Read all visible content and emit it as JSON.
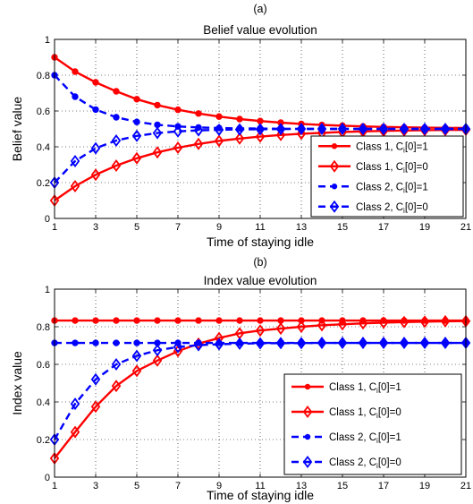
{
  "chart_data": [
    {
      "type": "line",
      "panel": "(a)",
      "title": "Belief value evolution",
      "xlabel": "Time of staying idle",
      "ylabel": "Belief value",
      "xlim": [
        1,
        21
      ],
      "ylim": [
        0,
        1
      ],
      "xticks": [
        "1",
        "3",
        "5",
        "7",
        "9",
        "11",
        "13",
        "15",
        "17",
        "19",
        "21"
      ],
      "yticks": [
        "0",
        "0.2",
        "0.4",
        "0.6",
        "0.8",
        "1"
      ],
      "grid": true,
      "legend_position": "lower-right",
      "x": [
        1,
        2,
        3,
        4,
        5,
        6,
        7,
        8,
        9,
        10,
        11,
        12,
        13,
        14,
        15,
        16,
        17,
        18,
        19,
        20,
        21
      ],
      "series": [
        {
          "name": "Class 1, C_i[0]=1",
          "label_main": "Class 1, C",
          "label_sub": "i",
          "label_tail": "[0]=1",
          "color": "#ff0000",
          "dash": "solid",
          "marker": "dot",
          "values": [
            0.9,
            0.82,
            0.76,
            0.71,
            0.666,
            0.633,
            0.607,
            0.586,
            0.569,
            0.555,
            0.544,
            0.535,
            0.528,
            0.522,
            0.518,
            0.514,
            0.511,
            0.509,
            0.507,
            0.506,
            0.505
          ]
        },
        {
          "name": "Class 1, C_i[0]=0",
          "label_main": "Class 1, C",
          "label_sub": "i",
          "label_tail": "[0]=0",
          "color": "#ff0000",
          "dash": "solid",
          "marker": "diamond",
          "values": [
            0.1,
            0.18,
            0.244,
            0.295,
            0.336,
            0.369,
            0.395,
            0.416,
            0.433,
            0.446,
            0.457,
            0.466,
            0.473,
            0.478,
            0.483,
            0.486,
            0.489,
            0.491,
            0.493,
            0.494,
            0.495
          ]
        },
        {
          "name": "Class 2, C_i[0]=1",
          "label_main": "Class 2, C",
          "label_sub": "i",
          "label_tail": "[0]=1",
          "color": "#0000ff",
          "dash": "dashed",
          "marker": "dot",
          "values": [
            0.8,
            0.68,
            0.608,
            0.565,
            0.539,
            0.523,
            0.514,
            0.508,
            0.505,
            0.503,
            0.502,
            0.501,
            0.5,
            0.5,
            0.5,
            0.5,
            0.5,
            0.5,
            0.5,
            0.5,
            0.5
          ]
        },
        {
          "name": "Class 2, C_i[0]=0",
          "label_main": "Class 2, C",
          "label_sub": "i",
          "label_tail": "[0]=0",
          "color": "#0000ff",
          "dash": "dashed",
          "marker": "diamond",
          "values": [
            0.2,
            0.32,
            0.392,
            0.435,
            0.461,
            0.477,
            0.486,
            0.492,
            0.495,
            0.497,
            0.498,
            0.499,
            0.5,
            0.5,
            0.5,
            0.5,
            0.5,
            0.5,
            0.5,
            0.5,
            0.5
          ]
        }
      ]
    },
    {
      "type": "line",
      "panel": "(b)",
      "title": "Index value evolution",
      "xlabel": "Time of staying idle",
      "ylabel": "Index value",
      "xlim": [
        1,
        21
      ],
      "ylim": [
        0,
        1
      ],
      "xticks": [
        "1",
        "3",
        "5",
        "7",
        "9",
        "11",
        "13",
        "15",
        "17",
        "19",
        "21"
      ],
      "yticks": [
        "0",
        "0.2",
        "0.4",
        "0.6",
        "0.8",
        "1"
      ],
      "grid": true,
      "legend_position": "lower-right",
      "x": [
        1,
        2,
        3,
        4,
        5,
        6,
        7,
        8,
        9,
        10,
        11,
        12,
        13,
        14,
        15,
        16,
        17,
        18,
        19,
        20,
        21
      ],
      "series": [
        {
          "name": "Class 1, C_i[0]=1",
          "label_main": "Class 1, C",
          "label_sub": "i",
          "label_tail": "[0]=1",
          "color": "#ff0000",
          "dash": "solid",
          "marker": "dot",
          "values": [
            0.833,
            0.833,
            0.833,
            0.833,
            0.833,
            0.833,
            0.833,
            0.833,
            0.833,
            0.833,
            0.833,
            0.833,
            0.833,
            0.833,
            0.833,
            0.833,
            0.833,
            0.833,
            0.833,
            0.833,
            0.833
          ]
        },
        {
          "name": "Class 1, C_i[0]=0",
          "label_main": "Class 1, C",
          "label_sub": "i",
          "label_tail": "[0]=0",
          "color": "#ff0000",
          "dash": "solid",
          "marker": "diamond",
          "values": [
            0.1,
            0.24,
            0.375,
            0.485,
            0.565,
            0.62,
            0.67,
            0.71,
            0.74,
            0.765,
            0.78,
            0.79,
            0.8,
            0.808,
            0.813,
            0.818,
            0.822,
            0.825,
            0.827,
            0.829,
            0.83
          ]
        },
        {
          "name": "Class 2, C_i[0]=1",
          "label_main": "Class 2, C",
          "label_sub": "i",
          "label_tail": "[0]=1",
          "color": "#0000ff",
          "dash": "dashed",
          "marker": "dot",
          "values": [
            0.714,
            0.714,
            0.714,
            0.714,
            0.714,
            0.714,
            0.714,
            0.714,
            0.714,
            0.714,
            0.714,
            0.714,
            0.714,
            0.714,
            0.714,
            0.714,
            0.714,
            0.714,
            0.714,
            0.714,
            0.714
          ]
        },
        {
          "name": "Class 2, C_i[0]=0",
          "label_main": "Class 2, C",
          "label_sub": "i",
          "label_tail": "[0]=0",
          "color": "#0000ff",
          "dash": "dashed",
          "marker": "diamond",
          "values": [
            0.2,
            0.39,
            0.52,
            0.6,
            0.645,
            0.675,
            0.692,
            0.702,
            0.707,
            0.71,
            0.712,
            0.713,
            0.713,
            0.714,
            0.714,
            0.714,
            0.714,
            0.714,
            0.714,
            0.714,
            0.714
          ]
        }
      ]
    }
  ]
}
